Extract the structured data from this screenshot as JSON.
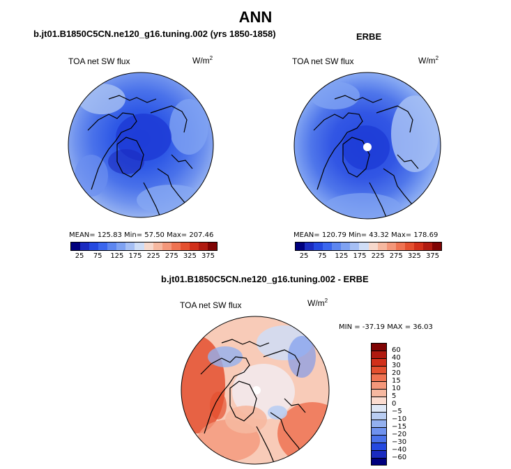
{
  "header": {
    "title": "ANN",
    "left_subtitle": "b.jt01.B1850C5CN.ne120_g16.tuning.002 (yrs 1850-1858)",
    "right_subtitle": "ERBE",
    "diff_subtitle": "b.jt01.B1850C5CN.ne120_g16.tuning.002 - ERBE"
  },
  "panels": {
    "model": {
      "label": "TOA net SW flux",
      "unit": "W/m",
      "unit_exp": "2",
      "stats": "MEAN= 125.83   Min=  57.50   Max= 207.46"
    },
    "obs": {
      "label": "TOA net SW flux",
      "unit": "W/m",
      "unit_exp": "2",
      "stats": "MEAN= 120.79   Min=  43.32   Max= 178.69"
    },
    "diff": {
      "label": "TOA net SW flux",
      "unit": "W/m",
      "unit_exp": "2",
      "stats": "MIN = -37.19  MAX =  36.03"
    }
  },
  "colorbar_abs": {
    "ticks": [
      "25",
      "75",
      "125",
      "175",
      "225",
      "275",
      "325",
      "375"
    ],
    "colors": [
      "#00007e",
      "#1a2bc0",
      "#2449e0",
      "#3a66ee",
      "#5d86f0",
      "#7fa2f2",
      "#a6bff4",
      "#cfddf6",
      "#f6d8cc",
      "#f6b8a0",
      "#f4977a",
      "#ef7352",
      "#e4502f",
      "#d1301a",
      "#b01a10",
      "#7f0303"
    ]
  },
  "colorbar_diff": {
    "ticks": [
      "60",
      "40",
      "30",
      "20",
      "15",
      "10",
      "5",
      "0",
      "−5",
      "−10",
      "−15",
      "−20",
      "−30",
      "−40",
      "−60"
    ],
    "colors": [
      "#7f0303",
      "#b01a10",
      "#d1301a",
      "#e4502f",
      "#ef7352",
      "#f4977a",
      "#f6b8a0",
      "#fbdcd0",
      "#dfe8f6",
      "#b9cdf2",
      "#93b0ef",
      "#6f92ee",
      "#4a72ea",
      "#2449e0",
      "#1a2bc0",
      "#00007e"
    ]
  }
}
